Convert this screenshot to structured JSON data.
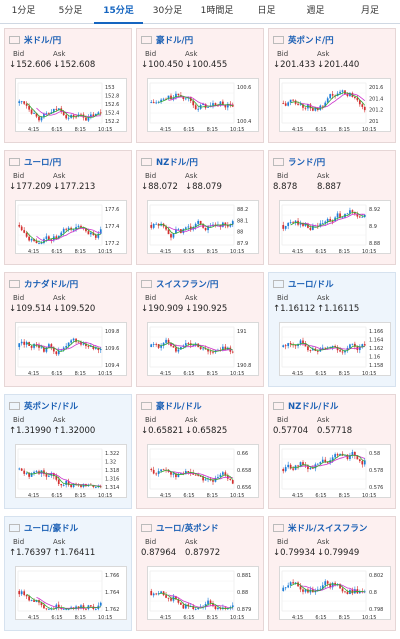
{
  "tabs": [
    {
      "label": "1分足",
      "active": false
    },
    {
      "label": "5分足",
      "active": false
    },
    {
      "label": "15分足",
      "active": true
    },
    {
      "label": "30分足",
      "active": false
    },
    {
      "label": "1時間足",
      "active": false
    },
    {
      "label": "日足",
      "active": false
    },
    {
      "label": "週足",
      "active": false
    },
    {
      "label": "月足",
      "active": false
    }
  ],
  "labels": {
    "bid": "Bid",
    "ask": "Ask"
  },
  "colors": {
    "up": "#1e7dd8",
    "down": "#d32f2f",
    "ma1": "#cc33cc",
    "ma2": "#33aa33",
    "accent": "#1565c0"
  },
  "cards": [
    {
      "name": "米ドル/円",
      "flag": "us",
      "theme": "pink",
      "bid": "↓152.606",
      "ask": "↓152.608",
      "y_ticks": [
        "153",
        "152.8",
        "152.6",
        "152.4",
        "152.2"
      ],
      "x_ticks": [
        "4:15",
        "6:15",
        "8:15",
        "10:15"
      ]
    },
    {
      "name": "豪ドル/円",
      "flag": "au",
      "theme": "pink",
      "bid": "↓100.450",
      "ask": "↓100.455",
      "y_ticks": [
        "100.6",
        "100.4"
      ],
      "x_ticks": [
        "4:15",
        "6:15",
        "8:15",
        "10:15"
      ]
    },
    {
      "name": "英ポンド/円",
      "flag": "gb",
      "theme": "pink",
      "bid": "↓201.433",
      "ask": "↓201.440",
      "y_ticks": [
        "201.6",
        "201.4",
        "201.2",
        "201"
      ],
      "x_ticks": [
        "4:15",
        "6:15",
        "8:15",
        "10:15"
      ]
    },
    {
      "name": "ユーロ/円",
      "flag": "eu",
      "theme": "pink",
      "bid": "↓177.209",
      "ask": "↓177.213",
      "y_ticks": [
        "177.6",
        "177.4",
        "177.2"
      ],
      "x_ticks": [
        "4:15",
        "6:15",
        "8:15",
        "10:15"
      ]
    },
    {
      "name": "NZドル/円",
      "flag": "nz",
      "theme": "pink",
      "bid": "↓88.072",
      "ask": "↓88.079",
      "y_ticks": [
        "88.2",
        "88.1",
        "88",
        "87.9"
      ],
      "x_ticks": [
        "4:15",
        "6:15",
        "8:15",
        "10:15"
      ]
    },
    {
      "name": "ランド/円",
      "flag": "za",
      "theme": "pink",
      "bid": "8.878",
      "ask": "8.887",
      "y_ticks": [
        "8.92",
        "8.9",
        "8.88"
      ],
      "x_ticks": [
        "4:15",
        "6:15",
        "8:15",
        "10:15"
      ]
    },
    {
      "name": "カナダドル/円",
      "flag": "ca",
      "theme": "pink",
      "bid": "↓109.514",
      "ask": "↓109.520",
      "y_ticks": [
        "109.8",
        "109.6",
        "109.4"
      ],
      "x_ticks": [
        "4:15",
        "6:15",
        "8:15",
        "10:15"
      ]
    },
    {
      "name": "スイスフラン/円",
      "flag": "ch",
      "theme": "pink",
      "bid": "↓190.909",
      "ask": "↓190.925",
      "y_ticks": [
        "191",
        "190.8"
      ],
      "x_ticks": [
        "4:15",
        "6:15",
        "8:15",
        "10:15"
      ]
    },
    {
      "name": "ユーロ/ドル",
      "flag": "eu-us",
      "theme": "blue",
      "bid": "↑1.16112",
      "ask": "↑1.16115",
      "y_ticks": [
        "1.166",
        "1.164",
        "1.162",
        "1.16",
        "1.158"
      ],
      "x_ticks": [
        "4:15",
        "6:15",
        "8:15",
        "10:15"
      ]
    },
    {
      "name": "英ポンド/ドル",
      "flag": "gb-us",
      "theme": "blue",
      "bid": "↑1.31990",
      "ask": "↑1.32000",
      "y_ticks": [
        "1.322",
        "1.32",
        "1.318",
        "1.316",
        "1.314"
      ],
      "x_ticks": [
        "4:15",
        "6:15",
        "8:15",
        "10:15"
      ]
    },
    {
      "name": "豪ドル/ドル",
      "flag": "au-us",
      "theme": "pink",
      "bid": "↓0.65821",
      "ask": "↓0.65825",
      "y_ticks": [
        "0.66",
        "0.658",
        "0.656"
      ],
      "x_ticks": [
        "4:15",
        "6:15",
        "8:15",
        "10:15"
      ]
    },
    {
      "name": "NZドル/ドル",
      "flag": "nz-us",
      "theme": "pink",
      "bid": "0.57704",
      "ask": "0.57718",
      "y_ticks": [
        "0.58",
        "0.578",
        "0.576"
      ],
      "x_ticks": [
        "4:15",
        "6:15",
        "8:15",
        "10:15"
      ]
    },
    {
      "name": "ユーロ/豪ドル",
      "flag": "eu-au",
      "theme": "blue",
      "bid": "↑1.76397",
      "ask": "↑1.76411",
      "y_ticks": [
        "1.766",
        "1.764",
        "1.762"
      ],
      "x_ticks": [
        "4:15",
        "6:15",
        "8:15",
        "10:15"
      ]
    },
    {
      "name": "ユーロ/英ポンド",
      "flag": "eu-gb",
      "theme": "pink",
      "bid": "0.87964",
      "ask": "0.87972",
      "y_ticks": [
        "0.881",
        "0.88",
        "0.879"
      ],
      "x_ticks": [
        "4:15",
        "6:15",
        "8:15",
        "10:15"
      ]
    },
    {
      "name": "米ドル/スイスフラン",
      "flag": "us-ch",
      "theme": "pink",
      "bid": "↓0.79934",
      "ask": "↓0.79949",
      "y_ticks": [
        "0.802",
        "0.8",
        "0.798"
      ],
      "x_ticks": [
        "4:15",
        "6:15",
        "8:15",
        "10:15"
      ]
    }
  ]
}
